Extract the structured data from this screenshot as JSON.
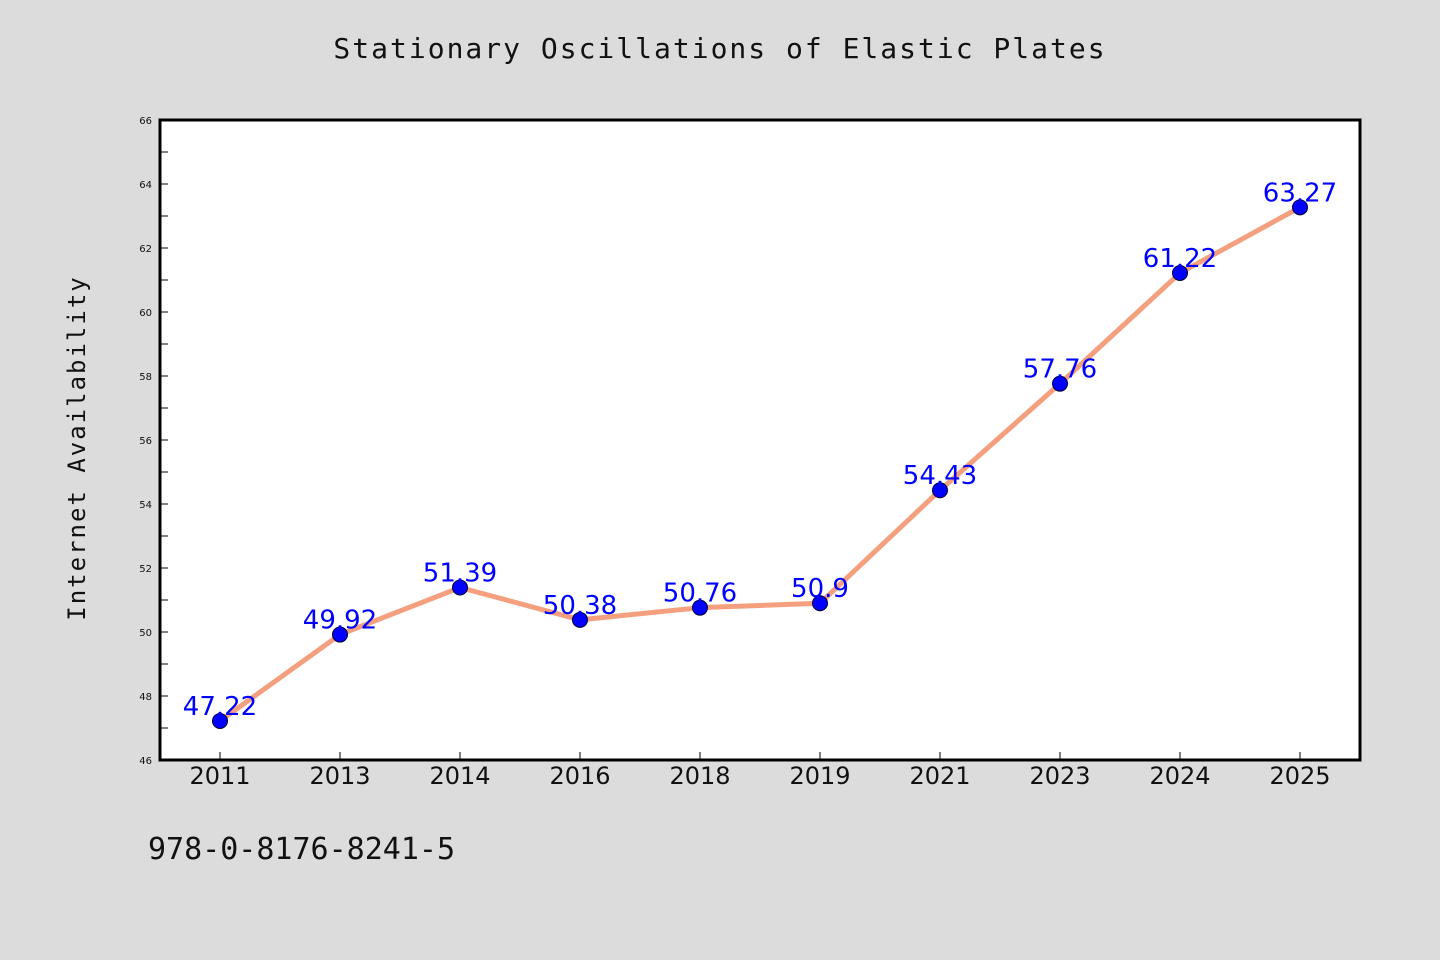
{
  "chart_data": {
    "type": "line",
    "title": "Stationary Oscillations of Elastic Plates",
    "xlabel": "",
    "ylabel": "Internet Availability",
    "categories": [
      "2011",
      "2013",
      "2014",
      "2016",
      "2018",
      "2019",
      "2021",
      "2023",
      "2024",
      "2025"
    ],
    "series": [
      {
        "values": [
          47.22,
          49.92,
          51.39,
          50.38,
          50.76,
          50.9,
          54.43,
          57.76,
          61.22,
          63.27
        ],
        "labels": [
          "47.22",
          "49.92",
          "51.39",
          "50.38",
          "50.76",
          "50.9",
          "54.43",
          "57.76",
          "61.22",
          "63.27"
        ],
        "line_color": "#f4a07f",
        "marker_color": "#0000ff"
      }
    ],
    "ylim": [
      46,
      66
    ],
    "yticks": [
      "46",
      "48",
      "50",
      "52",
      "54",
      "56",
      "58",
      "60",
      "62",
      "64",
      "66"
    ],
    "grid": false,
    "background": "#dcdcdc",
    "plot_background": "#ffffff"
  },
  "footnote": "978-0-8176-8241-5"
}
